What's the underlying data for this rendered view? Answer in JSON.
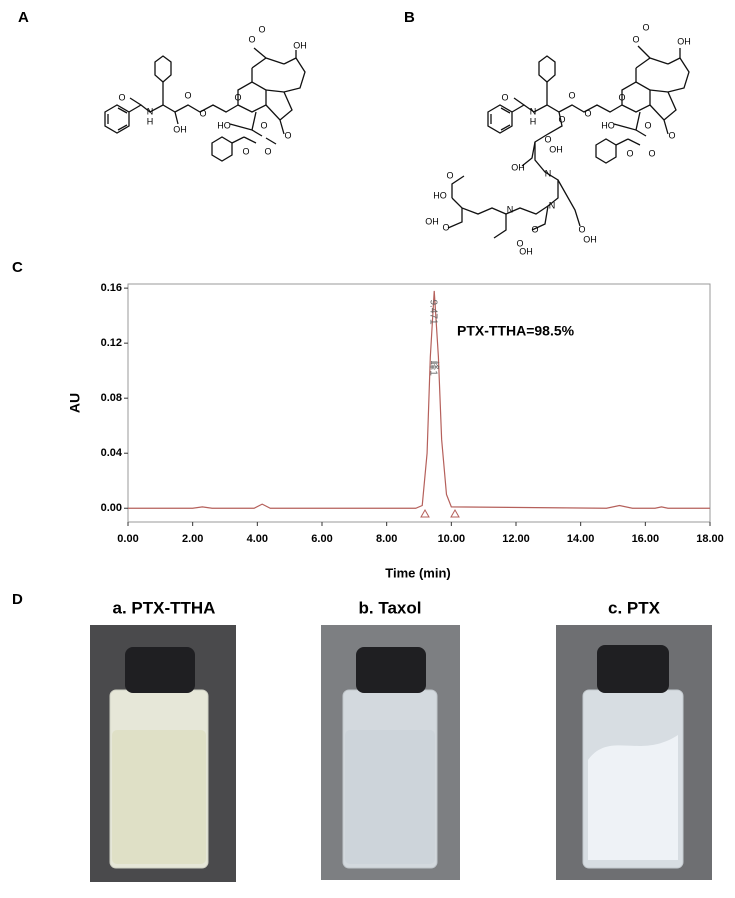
{
  "panel_labels": [
    "A",
    "B",
    "C",
    "D"
  ],
  "structure_a": {
    "atoms": [
      "O",
      "N",
      "H",
      "OH",
      "O",
      "O",
      "O",
      "O",
      "O",
      "OH",
      "HO",
      "O",
      "O",
      "O",
      "O"
    ]
  },
  "structure_b": {
    "atoms": [
      "O",
      "N",
      "H",
      "O",
      "O",
      "O",
      "O",
      "O",
      "O",
      "OH",
      "HO",
      "O",
      "O",
      "O",
      "O",
      "O",
      "OH",
      "N",
      "OH",
      "O",
      "N",
      "N",
      "O",
      "OH",
      "O",
      "HO",
      "O",
      "OH",
      "O",
      "OH"
    ]
  },
  "chart_data": {
    "type": "line",
    "x_label": "Time (min)",
    "y_label": "AU",
    "annotation": "PTX-TTHA=98.5%",
    "peak_label": "9.471",
    "peak_name": "峰1",
    "x": [
      0,
      2.0,
      2.3,
      2.6,
      3.9,
      4.15,
      4.4,
      8.9,
      9.1,
      9.25,
      9.35,
      9.471,
      9.6,
      9.7,
      9.85,
      10.0,
      14.8,
      15.2,
      15.6,
      16.3,
      16.5,
      16.7,
      18.0
    ],
    "series": [
      {
        "color": "#b5605b",
        "values": [
          0,
          0,
          0.001,
          0,
          0,
          0.003,
          0,
          0,
          0.002,
          0.04,
          0.11,
          0.158,
          0.11,
          0.05,
          0.01,
          0.001,
          0,
          0.002,
          0,
          0,
          0.001,
          0,
          0
        ]
      }
    ],
    "xlim": [
      0,
      18
    ],
    "ylim": [
      -0.01,
      0.163
    ],
    "xticks": [
      {
        "value": 0,
        "label": "0.00"
      },
      {
        "value": 2,
        "label": "2.00"
      },
      {
        "value": 4,
        "label": "4.00"
      },
      {
        "value": 6,
        "label": "6.00"
      },
      {
        "value": 8,
        "label": "8.00"
      },
      {
        "value": 10,
        "label": "10.00"
      },
      {
        "value": 12,
        "label": "12.00"
      },
      {
        "value": 14,
        "label": "14.00"
      },
      {
        "value": 16,
        "label": "16.00"
      },
      {
        "value": 18,
        "label": "18.00"
      }
    ],
    "yticks": [
      {
        "value": 0,
        "label": "0.00"
      },
      {
        "value": 0.04,
        "label": "0.04"
      },
      {
        "value": 0.08,
        "label": "0.08"
      },
      {
        "value": 0.12,
        "label": "0.12"
      },
      {
        "value": 0.16,
        "label": "0.16"
      }
    ]
  },
  "photos": [
    {
      "title": "a. PTX-TTHA"
    },
    {
      "title": "b. Taxol"
    },
    {
      "title": "c. PTX"
    }
  ]
}
